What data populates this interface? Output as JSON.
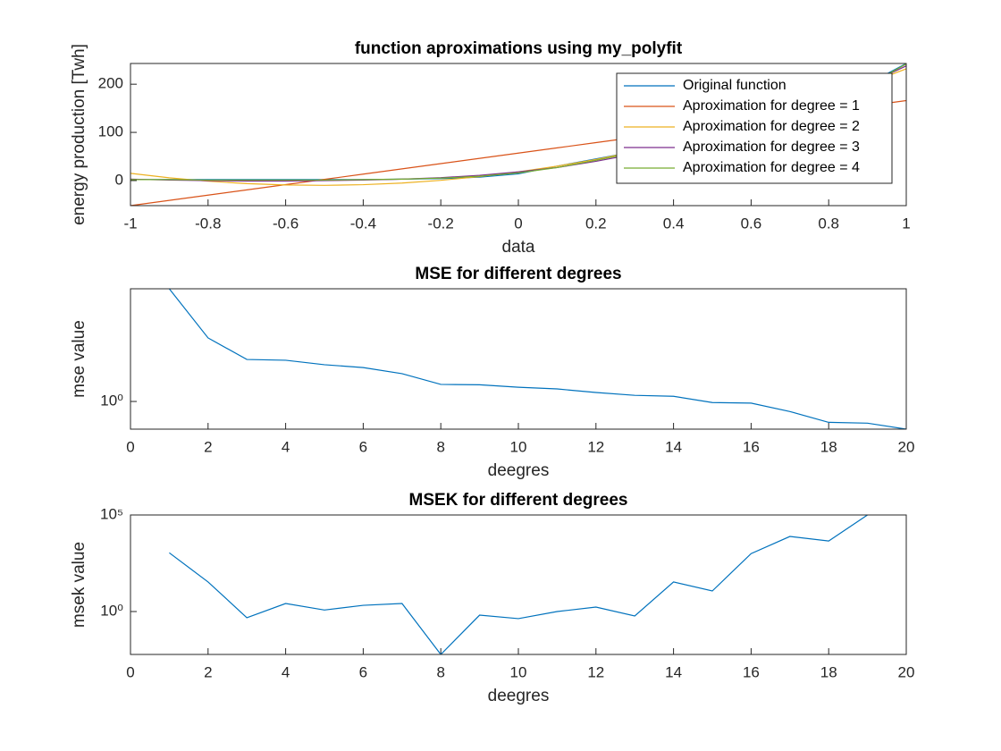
{
  "chart_data": [
    {
      "type": "line",
      "title": "function aproximations using my_polyfit",
      "xlabel": "data",
      "ylabel": "energy production [Twh]",
      "x": [
        -1,
        -0.9,
        -0.8,
        -0.7,
        -0.6,
        -0.5,
        -0.4,
        -0.3,
        -0.2,
        -0.1,
        0,
        0.1,
        0.2,
        0.3,
        0.4,
        0.5,
        0.6,
        0.7,
        0.8,
        0.9,
        1
      ],
      "series": [
        {
          "name": "Original function",
          "color": "#0072BD",
          "values": [
            2,
            2,
            2,
            2,
            2,
            2,
            2,
            3,
            4,
            7,
            14,
            30,
            45,
            60,
            75,
            90,
            110,
            135,
            165,
            200,
            243
          ]
        },
        {
          "name": "Aproximation for degree = 1",
          "color": "#D95319",
          "values": [
            -52,
            -41.1,
            -30.2,
            -19.3,
            -8.4,
            2.5,
            13.4,
            24.3,
            35.2,
            46.1,
            57,
            67.9,
            78.8,
            89.7,
            100.6,
            111.5,
            122.4,
            133.3,
            144.2,
            155.1,
            166
          ]
        },
        {
          "name": "Aproximation for degree = 2",
          "color": "#EDB120",
          "values": [
            15,
            5.8,
            -1.3,
            -6.3,
            -9.1,
            -9.9,
            -8.5,
            -5.1,
            0.5,
            8.2,
            18,
            29.9,
            43.9,
            60,
            78.3,
            98.6,
            121.1,
            145.6,
            172.3,
            201.1,
            232
          ]
        },
        {
          "name": "Aproximation for degree = 3",
          "color": "#7E2F8E",
          "values": [
            3,
            1,
            0,
            -1,
            -1,
            0,
            1,
            3,
            6,
            11,
            18,
            27,
            40,
            55,
            72,
            92,
            115,
            140,
            168,
            200,
            238
          ]
        },
        {
          "name": "Aproximation for degree = 4",
          "color": "#77AC30",
          "values": [
            2,
            2,
            1,
            1,
            1,
            1,
            2,
            3,
            5,
            9,
            16,
            27,
            42,
            58,
            75,
            93,
            113,
            136,
            163,
            197,
            242
          ]
        }
      ],
      "xlim": [
        -1,
        1
      ],
      "ylim": [
        -52,
        243
      ],
      "xticks": [
        -1,
        -0.8,
        -0.6,
        -0.4,
        -0.2,
        0,
        0.2,
        0.4,
        0.6,
        0.8,
        1
      ],
      "yticks": [
        0,
        100,
        200
      ],
      "legend": "upper-right"
    },
    {
      "type": "line",
      "title": "MSE for different degrees",
      "xlabel": "deegres",
      "ylabel": "mse value",
      "yscale": "log",
      "x": [
        1,
        2,
        3,
        4,
        5,
        6,
        7,
        8,
        9,
        10,
        11,
        12,
        13,
        14,
        15,
        16,
        17,
        18,
        19,
        20
      ],
      "series": [
        {
          "color": "#0072BD",
          "values": [
            8,
            3.23,
            2.17,
            2.14,
            1.97,
            1.87,
            1.67,
            1.37,
            1.36,
            1.3,
            1.26,
            1.18,
            1.12,
            1.1,
            0.98,
            0.97,
            0.83,
            0.68,
            0.67,
            0.6
          ]
        }
      ],
      "xlim": [
        0,
        20
      ],
      "ylim": [
        0.6,
        8
      ],
      "xticks": [
        0,
        2,
        4,
        6,
        8,
        10,
        12,
        14,
        16,
        18,
        20
      ],
      "yticks": [
        {
          "value": 1,
          "label": "10⁰"
        }
      ]
    },
    {
      "type": "line",
      "title": "MSEK for different degrees",
      "xlabel": "deegres",
      "ylabel": "msek value",
      "yscale": "log",
      "x": [
        1,
        2,
        3,
        4,
        5,
        6,
        7,
        8,
        9,
        10,
        11,
        12,
        13,
        14,
        15,
        16,
        17,
        18,
        19
      ],
      "series": [
        {
          "color": "#0072BD",
          "values": [
            1100,
            34,
            0.48,
            2.6,
            1.2,
            2.1,
            2.6,
            0.006,
            0.65,
            0.43,
            1,
            1.7,
            0.59,
            34,
            11.6,
            1000,
            7700,
            4500,
            100000
          ]
        }
      ],
      "xlim": [
        0,
        20
      ],
      "ylim": [
        0.006,
        100000
      ],
      "xticks": [
        0,
        2,
        4,
        6,
        8,
        10,
        12,
        14,
        16,
        18,
        20
      ],
      "yticks": [
        {
          "value": 1,
          "label": "10⁰"
        },
        {
          "value": 100000,
          "label": "10⁵"
        }
      ]
    }
  ]
}
